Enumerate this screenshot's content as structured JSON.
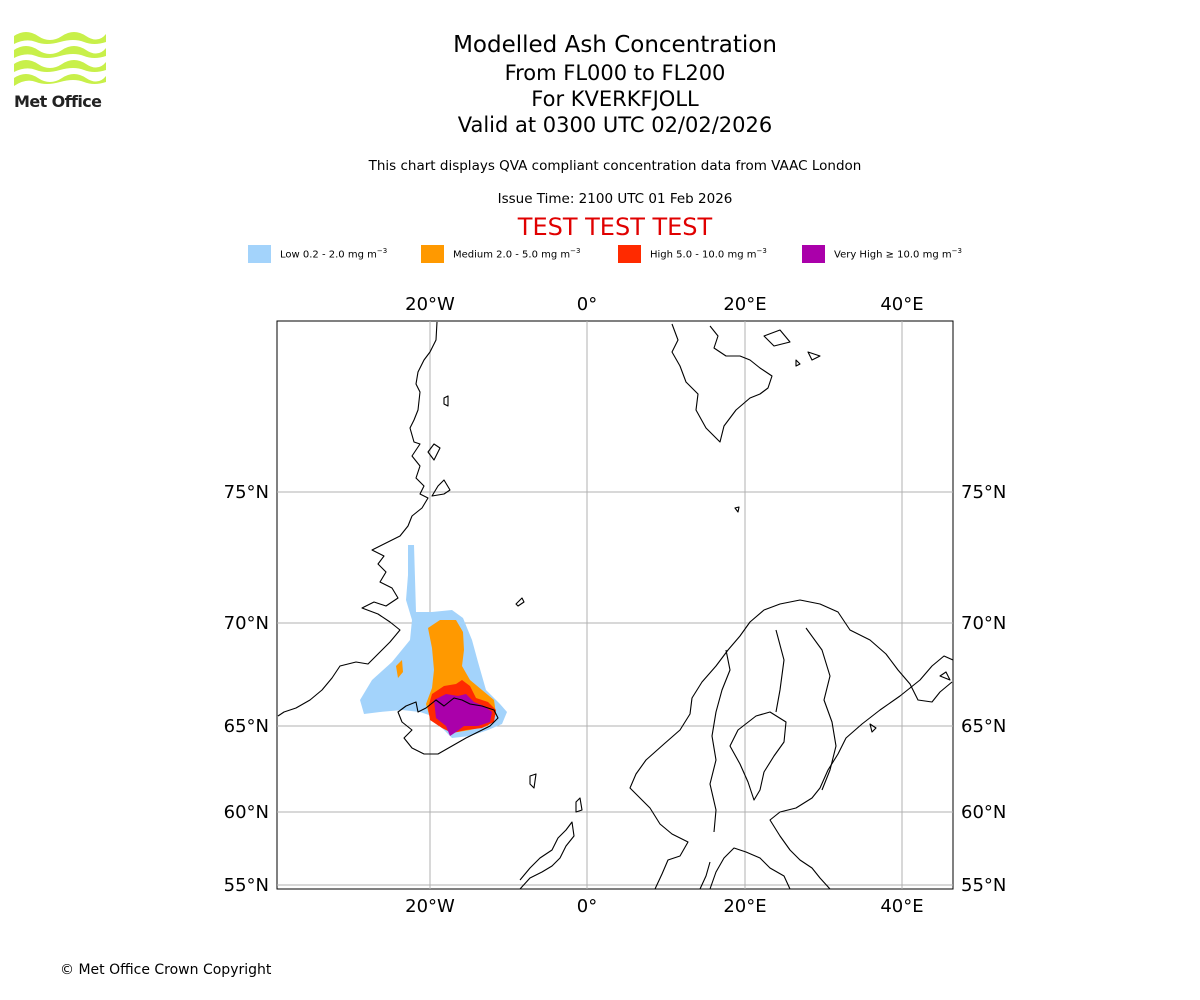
{
  "logo": {
    "text": "Met Office",
    "color": "#c8f04a"
  },
  "header": {
    "title": "Modelled Ash Concentration",
    "levels": "From FL000 to FL200",
    "volcano": "For KVERKFJOLL",
    "valid": "Valid at 0300 UTC 02/02/2026",
    "description": "This chart displays QVA compliant concentration data from VAAC London",
    "issue_time": "Issue Time: 2100 UTC 01 Feb 2026",
    "test_banner": "TEST TEST TEST",
    "test_color": "#e00000"
  },
  "legend": [
    {
      "label": "Low 0.2 - 2.0 mg m",
      "sup": "−3",
      "color": "#a3d3fb"
    },
    {
      "label": "Medium 2.0 - 5.0 mg m",
      "sup": "−3",
      "color": "#ff9900"
    },
    {
      "label": "High 5.0 - 10.0 mg m",
      "sup": "−3",
      "color": "#ff2a00"
    },
    {
      "label": "Very High  ≥  10.0 mg m",
      "sup": "−3",
      "color": "#aa00aa"
    }
  ],
  "map": {
    "lon_labels": [
      "20°W",
      "0°",
      "20°E",
      "40°E"
    ],
    "lat_labels": [
      "75°N",
      "70°N",
      "65°N",
      "60°N",
      "55°N"
    ],
    "gridlines": true,
    "region": "Iceland, Greenland east coast, Svalbard, Scandinavia"
  },
  "footer": {
    "copyright": "© Met Office Crown Copyright"
  }
}
